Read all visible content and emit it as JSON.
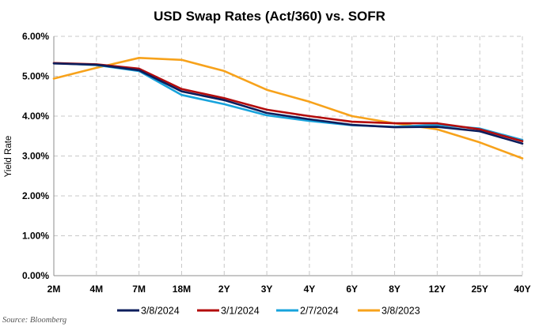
{
  "chart_data": {
    "type": "line",
    "title": "USD Swap Rates (Act/360) vs. SOFR",
    "ylabel": "Yield Rate",
    "xlabel": "",
    "categories": [
      "2M",
      "4M",
      "7M",
      "18M",
      "2Y",
      "3Y",
      "4Y",
      "6Y",
      "8Y",
      "12Y",
      "25Y",
      "40Y"
    ],
    "ylim": [
      0,
      6
    ],
    "yticks": [
      0,
      1,
      2,
      3,
      4,
      5,
      6
    ],
    "ytick_labels": [
      "0.00%",
      "1.00%",
      "2.00%",
      "3.00%",
      "4.00%",
      "5.00%",
      "6.00%"
    ],
    "grid": true,
    "legend_position": "bottom",
    "series": [
      {
        "name": "3/8/2024",
        "color": "#0d1e5c",
        "values": [
          5.32,
          5.29,
          5.15,
          4.62,
          4.4,
          4.08,
          3.92,
          3.78,
          3.72,
          3.73,
          3.62,
          3.31
        ]
      },
      {
        "name": "3/1/2024",
        "color": "#b30c0c",
        "values": [
          5.33,
          5.3,
          5.19,
          4.68,
          4.45,
          4.16,
          4.0,
          3.86,
          3.82,
          3.82,
          3.67,
          3.37
        ]
      },
      {
        "name": "2/7/2024",
        "color": "#17a3dc",
        "values": [
          5.33,
          5.28,
          5.13,
          4.53,
          4.3,
          4.02,
          3.88,
          3.77,
          3.73,
          3.78,
          3.69,
          3.4
        ]
      },
      {
        "name": "3/8/2023",
        "color": "#f7a21b",
        "values": [
          4.94,
          5.21,
          5.46,
          5.41,
          5.13,
          4.66,
          4.36,
          4.0,
          3.82,
          3.67,
          3.34,
          2.94
        ]
      }
    ],
    "source": "Source: Bloomberg"
  }
}
